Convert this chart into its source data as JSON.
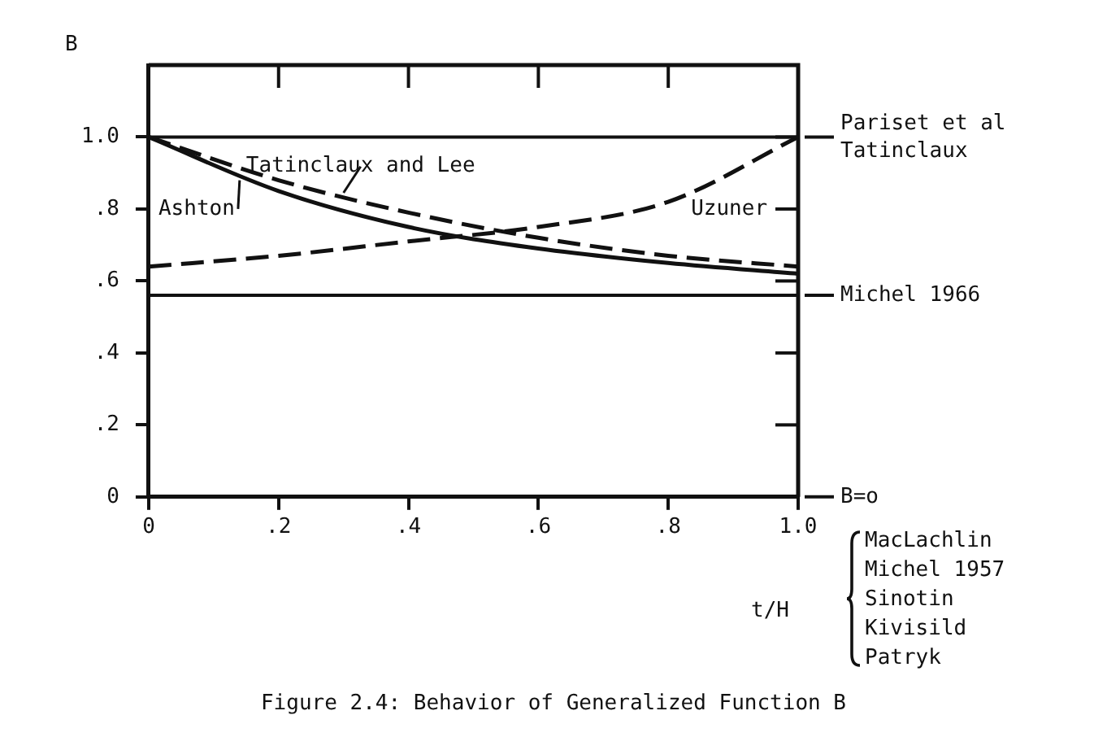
{
  "chart_data": {
    "type": "line",
    "title": "Figure 2.4:  Behavior of Generalized Function B",
    "xlabel": "t/H",
    "ylabel": "B",
    "x": [
      0,
      0.2,
      0.4,
      0.6,
      0.8,
      1.0
    ],
    "series": [
      {
        "name": "Tatinclaux and Lee",
        "color": "#111111",
        "line_style": "dashed",
        "values": [
          1.0,
          0.88,
          0.79,
          0.72,
          0.67,
          0.64
        ]
      },
      {
        "name": "Ashton",
        "color": "#111111",
        "line_style": "solid",
        "values": [
          1.0,
          0.85,
          0.75,
          0.69,
          0.65,
          0.62
        ]
      },
      {
        "name": "Uzuner",
        "color": "#111111",
        "line_style": "dashed",
        "values": [
          0.64,
          0.67,
          0.71,
          0.75,
          0.82,
          1.0
        ]
      }
    ],
    "xlim": [
      0,
      1.0
    ],
    "ylim": [
      0,
      1.2
    ],
    "xticks": [
      0,
      {
        "value": 0.2,
        "label": ".2"
      },
      {
        "value": 0.4,
        "label": ".4"
      },
      {
        "value": 0.6,
        "label": ".6"
      },
      {
        "value": 0.8,
        "label": ".8"
      },
      {
        "value": 1.0,
        "label": "1.0"
      }
    ],
    "yticks": [
      0,
      {
        "value": 0.2,
        "label": ".2"
      },
      {
        "value": 0.4,
        "label": ".4"
      },
      {
        "value": 0.6,
        "label": ".6"
      },
      {
        "value": 0.8,
        "label": ".8"
      },
      {
        "value": 1.0,
        "label": "1.0"
      }
    ],
    "ref_lines": [
      {
        "axis": "y",
        "value": 1.0,
        "label": "Pariset et al\nTatinclaux"
      },
      {
        "axis": "y",
        "value": 0.56,
        "label": "Michel 1966"
      },
      {
        "axis": "y",
        "value": 0,
        "label": "B=o"
      }
    ],
    "annotations": [
      "MacLachlin",
      "Michel 1957",
      "Sinotin",
      "Kivisild",
      "Patryk"
    ],
    "grid": false,
    "legend": false,
    "marker": "none"
  }
}
